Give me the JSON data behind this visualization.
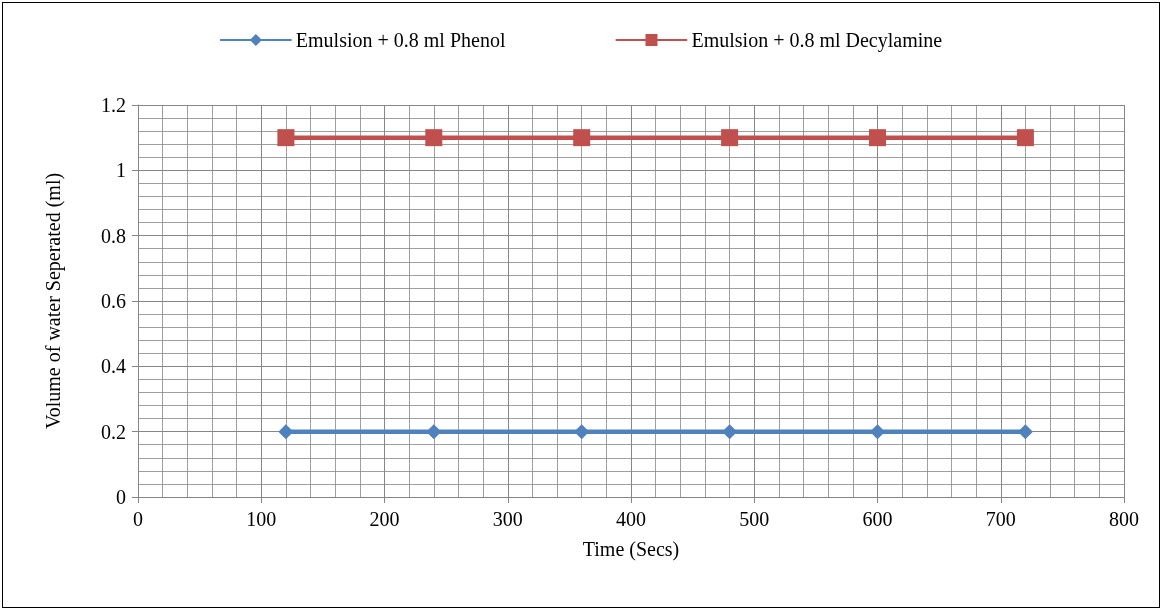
{
  "chart_data": {
    "type": "line",
    "xlabel": "Time (Secs)",
    "ylabel": "Volume of water Seperated (ml)",
    "x": [
      120,
      240,
      360,
      480,
      600,
      720
    ],
    "series": [
      {
        "name": "Emulsion + 0.8 ml Phenol",
        "color": "#4f81bd",
        "marker": "diamond",
        "values": [
          0.2,
          0.2,
          0.2,
          0.2,
          0.2,
          0.2
        ]
      },
      {
        "name": "Emulsion + 0.8 ml Decylamine",
        "color": "#c0504d",
        "marker": "square",
        "values": [
          1.1,
          1.1,
          1.1,
          1.1,
          1.1,
          1.1
        ]
      }
    ],
    "xlim": [
      0,
      800
    ],
    "xticks": [
      0,
      100,
      200,
      300,
      400,
      500,
      600,
      700,
      800
    ],
    "ylim": [
      0,
      1.2
    ],
    "yticks": [
      0,
      0.2,
      0.4,
      0.6,
      0.8,
      1,
      1.2
    ],
    "grid": true,
    "legend": "top",
    "line_style": "solid"
  }
}
